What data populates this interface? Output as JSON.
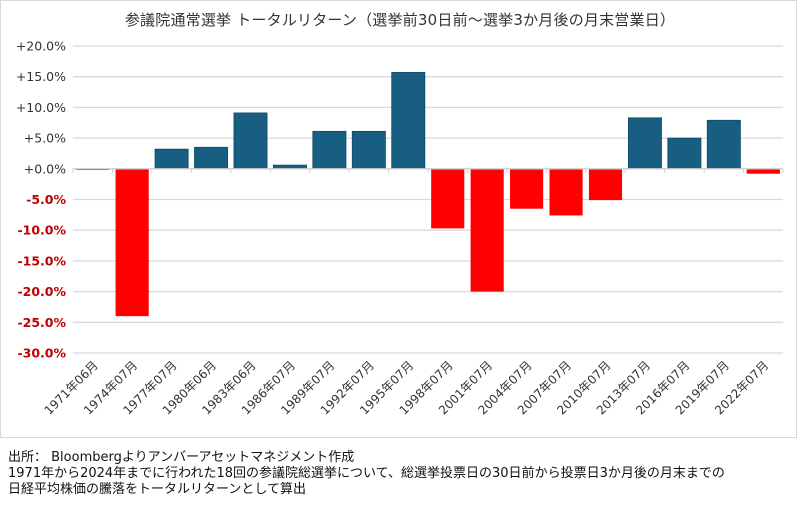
{
  "chart_data": {
    "type": "bar",
    "title": "参議院通常選挙 トータルリターン（選挙前30日前～選挙3か月後の月末営業日）",
    "xlabel": "",
    "ylabel": "",
    "ylim": [
      -30,
      20
    ],
    "yticks": [
      20,
      15,
      10,
      5,
      0,
      -5,
      -10,
      -15,
      -20,
      -25,
      -30
    ],
    "ytick_labels": [
      "+20.0%",
      "+15.0%",
      "+10.0%",
      "+5.0%",
      "+0.0%",
      "-5.0%",
      "-10.0%",
      "-15.0%",
      "-20.0%",
      "-25.0%",
      "-30.0%"
    ],
    "grid": true,
    "legend": "none",
    "categories": [
      "1971年06月",
      "1974年07月",
      "1977年07月",
      "1980年06月",
      "1983年06月",
      "1986年07月",
      "1989年07月",
      "1992年07月",
      "1995年07月",
      "1998年07月",
      "2001年07月",
      "2004年07月",
      "2007年07月",
      "2010年07月",
      "2013年07月",
      "2016年07月",
      "2019年07月",
      "2022年07月"
    ],
    "values": [
      -0.2,
      -24.0,
      3.2,
      3.5,
      9.1,
      0.6,
      6.1,
      6.1,
      15.7,
      -9.7,
      -20.0,
      -6.5,
      -7.6,
      -5.1,
      8.3,
      5.0,
      7.9,
      -0.8
    ],
    "unit": "%",
    "colors": {
      "positive": "#175e82",
      "negative": "#ff0000",
      "positive_tick_label": "#333333",
      "negative_tick_label": "#c00000",
      "grid": "#d9d9d9"
    }
  },
  "footer": {
    "source": "出所： Bloombergよりアンバーアセットマネジメント作成",
    "note_line1": "1971年から2024年までに行われた18回の参議院総選挙について、総選挙投票日の30日前から投票日3か月後の月末までの",
    "note_line2": "日経平均株価の騰落をトータルリターンとして算出"
  }
}
